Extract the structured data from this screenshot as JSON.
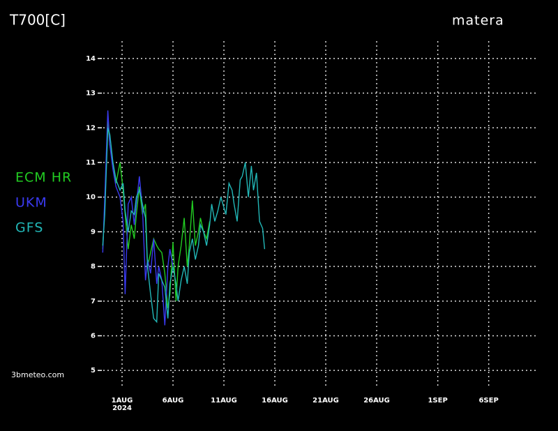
{
  "chart_data": {
    "type": "line",
    "title": "T700[C]",
    "subtitle": "matera",
    "source": "3bmeteo.com",
    "xlim": [
      -0.85,
      41.75
    ],
    "ylim": [
      4.5,
      14.5
    ],
    "xticks": [
      {
        "value": 1,
        "label": "1AUG"
      },
      {
        "value": 6,
        "label": "6AUG"
      },
      {
        "value": 11,
        "label": "11AUG"
      },
      {
        "value": 16,
        "label": "16AUG"
      },
      {
        "value": 21,
        "label": "21AUG"
      },
      {
        "value": 26,
        "label": "26AUG"
      },
      {
        "value": 32,
        "label": "1SEP"
      },
      {
        "value": 37,
        "label": "6SEP"
      }
    ],
    "xtick_sublabel": "2024",
    "yticks": [
      5,
      6,
      7,
      8,
      9,
      10,
      11,
      12,
      13,
      14
    ],
    "grid": true,
    "series": [
      {
        "name": "ECM HR",
        "color": "#22cc22",
        "x": [
          -0.9,
          -0.7,
          -0.4,
          -0.2,
          0.1,
          0.4,
          0.8,
          1.1,
          1.3,
          1.6,
          1.9,
          2.2,
          2.4,
          2.7,
          3.0,
          3.3,
          3.5,
          3.8,
          4.1,
          4.4,
          4.6,
          4.9,
          5.2,
          5.5,
          5.7,
          6.0,
          6.3,
          6.5,
          6.8,
          7.1,
          7.4,
          7.6,
          7.9,
          8.2,
          8.5,
          8.7,
          9.0,
          9.3,
          9.6
        ],
        "values": [
          8.5,
          9.8,
          12.2,
          11.5,
          11.0,
          10.4,
          11.0,
          10.2,
          9.5,
          8.5,
          9.2,
          8.8,
          9.5,
          10.3,
          9.5,
          9.8,
          8.0,
          8.4,
          8.8,
          8.6,
          8.5,
          8.4,
          7.8,
          6.8,
          7.2,
          8.7,
          7.0,
          8.0,
          8.6,
          9.4,
          8.0,
          8.6,
          9.9,
          8.6,
          9.0,
          9.4,
          9.0,
          8.8,
          9.3
        ]
      },
      {
        "name": "UKM",
        "color": "#3a3af0",
        "x": [
          -0.9,
          -0.7,
          -0.4,
          -0.2,
          0.1,
          0.4,
          0.8,
          1.1,
          1.3,
          1.6,
          1.9,
          2.2,
          2.4,
          2.7,
          3.0,
          3.3,
          3.5,
          3.8,
          4.1,
          4.4,
          4.6,
          4.9,
          5.2,
          5.5,
          5.7,
          6.0
        ],
        "values": [
          8.4,
          10.0,
          12.5,
          11.5,
          10.8,
          10.3,
          10.0,
          9.3,
          7.2,
          9.8,
          10.0,
          9.2,
          9.8,
          10.6,
          9.7,
          7.6,
          8.2,
          7.8,
          8.8,
          7.5,
          8.0,
          7.6,
          6.3,
          8.0,
          8.5,
          8.0
        ]
      },
      {
        "name": "GFS",
        "color": "#22b8b8",
        "x": [
          -0.9,
          -0.7,
          -0.4,
          -0.2,
          0.1,
          0.4,
          0.8,
          1.1,
          1.3,
          1.6,
          1.9,
          2.2,
          2.4,
          2.7,
          3.0,
          3.3,
          3.5,
          3.8,
          4.1,
          4.4,
          4.6,
          4.9,
          5.2,
          5.5,
          5.7,
          6.0,
          6.3,
          6.5,
          6.8,
          7.1,
          7.4,
          7.6,
          7.9,
          8.2,
          8.5,
          8.7,
          9.0,
          9.3,
          9.6,
          9.8,
          10.1,
          10.4,
          10.7,
          10.9,
          11.2,
          11.5,
          11.8,
          12.0,
          12.3,
          12.6,
          12.8,
          13.1,
          13.4,
          13.7,
          13.9,
          14.2,
          14.5,
          14.8,
          15.0
        ],
        "values": [
          8.6,
          9.5,
          12.0,
          11.8,
          11.0,
          10.5,
          10.2,
          10.4,
          9.6,
          9.0,
          9.6,
          9.5,
          10.0,
          10.2,
          9.8,
          9.4,
          8.0,
          7.2,
          6.5,
          6.4,
          7.8,
          7.6,
          7.4,
          6.5,
          7.5,
          8.0,
          7.5,
          7.0,
          7.6,
          8.0,
          7.5,
          8.4,
          8.8,
          8.2,
          8.6,
          9.2,
          9.0,
          8.6,
          9.2,
          9.8,
          9.3,
          9.6,
          10.0,
          9.8,
          9.5,
          10.4,
          10.2,
          9.8,
          9.3,
          10.5,
          10.6,
          11.0,
          10.0,
          10.9,
          10.2,
          10.7,
          9.3,
          9.1,
          8.5
        ]
      }
    ]
  }
}
